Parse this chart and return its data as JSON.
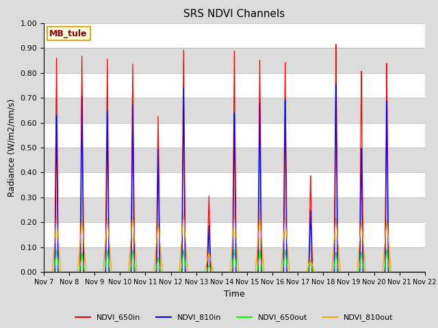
{
  "title": "SRS NDVI Channels",
  "xlabel": "Time",
  "ylabel": "Radiance (W/m2/nm/s)",
  "annotation": "MB_tule",
  "ylim": [
    0.0,
    1.0
  ],
  "background_color": "#dcdcdc",
  "legend_labels": [
    "NDVI_650in",
    "NDVI_810in",
    "NDVI_650out",
    "NDVI_810out"
  ],
  "line_colors": [
    "red",
    "blue",
    "lime",
    "orange"
  ],
  "tick_dates": [
    "Nov 7",
    "Nov 8",
    "Nov 9",
    "Nov 10",
    "Nov 11",
    "Nov 12",
    "Nov 13",
    "Nov 14",
    "Nov 15",
    "Nov 16",
    "Nov 17",
    "Nov 18",
    "Nov 19",
    "Nov 20",
    "Nov 21",
    "Nov 22"
  ],
  "day_peaks_650in": [
    0.86,
    0.87,
    0.86,
    0.84,
    0.63,
    0.9,
    0.31,
    0.9,
    0.86,
    0.85,
    0.39,
    0.92,
    0.81,
    0.84,
    0.0
  ],
  "day_peaks_810in": [
    0.63,
    0.71,
    0.65,
    0.68,
    0.5,
    0.75,
    0.19,
    0.65,
    0.69,
    0.7,
    0.25,
    0.76,
    0.5,
    0.69,
    0.0
  ],
  "day_peaks_650out": [
    0.09,
    0.08,
    0.09,
    0.09,
    0.06,
    0.09,
    0.03,
    0.09,
    0.09,
    0.09,
    0.05,
    0.08,
    0.08,
    0.09,
    0.0
  ],
  "day_peaks_810out": [
    0.22,
    0.21,
    0.22,
    0.23,
    0.2,
    0.24,
    0.08,
    0.23,
    0.22,
    0.22,
    0.05,
    0.22,
    0.21,
    0.21,
    0.0
  ],
  "n_days": 15,
  "points_per_day": 500
}
